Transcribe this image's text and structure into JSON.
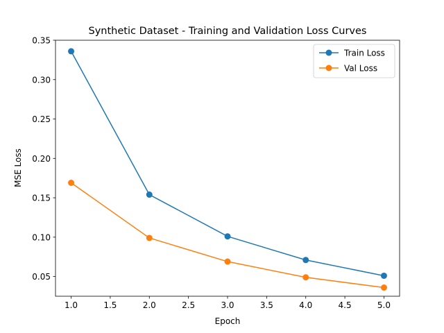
{
  "chart_data": {
    "type": "line",
    "title": "Synthetic Dataset - Training and Validation Loss Curves",
    "xlabel": "Epoch",
    "ylabel": "MSE Loss",
    "xlim": [
      0.8,
      5.2
    ],
    "ylim": [
      0.025,
      0.35
    ],
    "xticks": [
      "1.0",
      "1.5",
      "2.0",
      "2.5",
      "3.0",
      "3.5",
      "4.0",
      "4.5",
      "5.0"
    ],
    "yticks": [
      "0.05",
      "0.10",
      "0.15",
      "0.20",
      "0.25",
      "0.30",
      "0.35"
    ],
    "x": [
      1,
      2,
      3,
      4,
      5
    ],
    "series": [
      {
        "name": "Train Loss",
        "color": "#1f77b4",
        "values": [
          0.336,
          0.154,
          0.101,
          0.071,
          0.051
        ]
      },
      {
        "name": "Val Loss",
        "color": "#ff7f0e",
        "values": [
          0.169,
          0.099,
          0.069,
          0.049,
          0.036
        ]
      }
    ],
    "legend_position": "top-right",
    "grid": false
  }
}
